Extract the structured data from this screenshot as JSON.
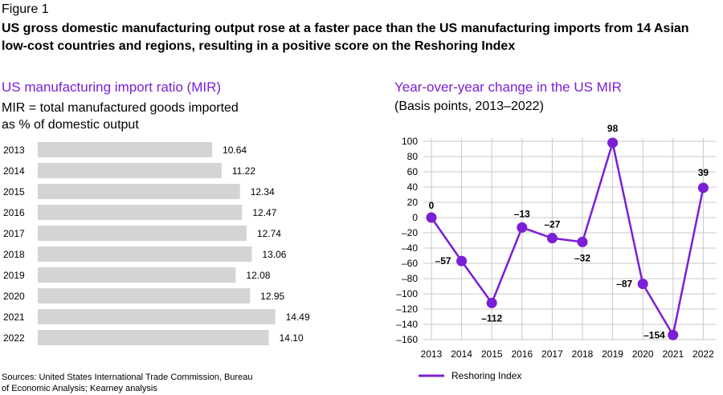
{
  "figure_label": "Figure 1",
  "figure_title": "US gross domestic manufacturing output rose at a faster pace than the US manufacturing imports from 14 Asian low-cost countries and regions, resulting in a positive score on the Reshoring Index",
  "source": "Sources: United States International Trade Commission, Bureau of Economic Analysis; Kearney analysis",
  "colors": {
    "accent": "#7b1fd6",
    "bar": "#d4d4d4",
    "grid": "#c8c8c8"
  },
  "chart_data": [
    {
      "type": "bar",
      "orientation": "horizontal",
      "title": "US manufacturing import ratio (MIR)",
      "subtitle": "MIR = total manufactured goods imported as % of domestic output",
      "categories": [
        "2013",
        "2014",
        "2015",
        "2016",
        "2017",
        "2018",
        "2019",
        "2020",
        "2021",
        "2022"
      ],
      "values": [
        10.64,
        11.22,
        12.34,
        12.47,
        12.74,
        13.06,
        12.08,
        12.95,
        14.49,
        14.1
      ],
      "value_labels": [
        "10.64",
        "11.22",
        "12.34",
        "12.47",
        "12.74",
        "13.06",
        "12.08",
        "12.95",
        "14.49",
        "14.10"
      ],
      "xlim": [
        0,
        16
      ]
    },
    {
      "type": "line",
      "title": "Year-over-year change in the US MIR",
      "subtitle": "(Basis points, 2013–2022)",
      "x": [
        "2013",
        "2014",
        "2015",
        "2016",
        "2017",
        "2018",
        "2019",
        "2020",
        "2021",
        "2022"
      ],
      "series": [
        {
          "name": "Reshoring Index",
          "values": [
            0,
            -57,
            -112,
            -13,
            -27,
            -32,
            98,
            -87,
            -154,
            39
          ],
          "labels": [
            "0",
            "–57",
            "–112",
            "–13",
            "–27",
            "–32",
            "98",
            "–87",
            "–154",
            "39"
          ]
        }
      ],
      "ylim": [
        -160,
        100
      ],
      "yticks": [
        100,
        80,
        60,
        40,
        20,
        0,
        -20,
        -40,
        -60,
        -80,
        -100,
        -120,
        -140,
        -160
      ],
      "ytick_labels": [
        "100",
        "80",
        "60",
        "40",
        "20",
        "0",
        "–20",
        "–40",
        "–60",
        "–80",
        "–100",
        "–120",
        "–140",
        "–160"
      ],
      "grid": true,
      "legend": "bottom"
    }
  ]
}
